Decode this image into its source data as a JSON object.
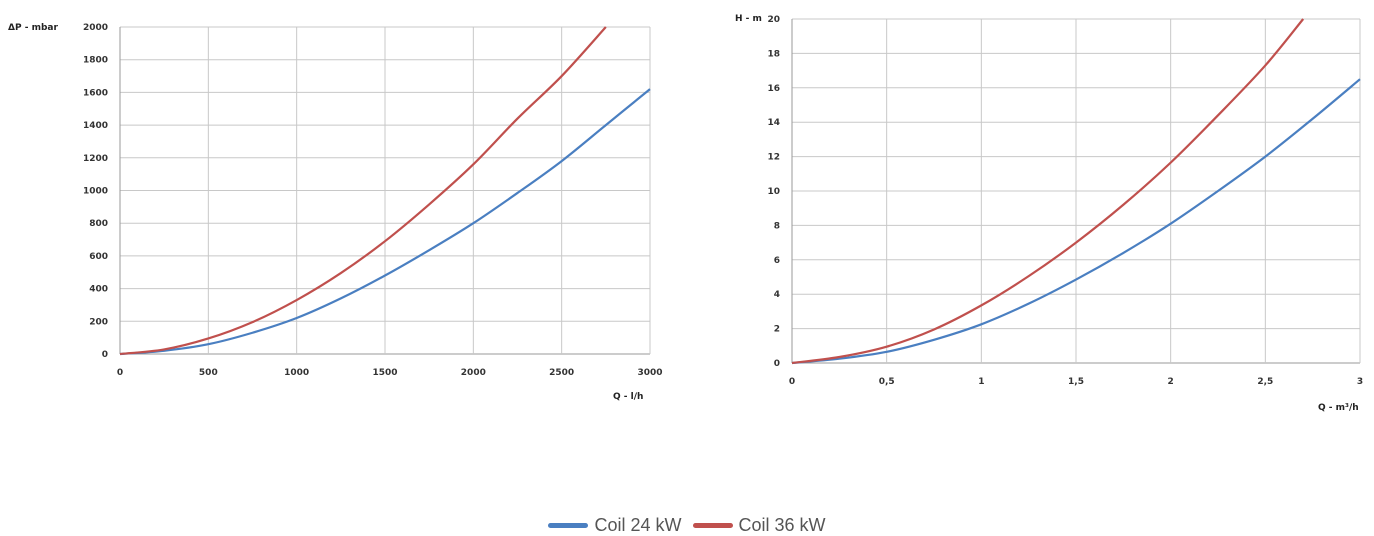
{
  "chart_data": [
    {
      "type": "line",
      "xlabel": "Q - l/h",
      "ylabel": "ΔP - mbar",
      "xlim": [
        0,
        3000
      ],
      "ylim": [
        0,
        2000
      ],
      "xticks": [
        0,
        500,
        1000,
        1500,
        2000,
        2500,
        3000
      ],
      "xtick_labels": [
        "0",
        "500",
        "1000",
        "1500",
        "2000",
        "2500",
        "3000"
      ],
      "yticks": [
        0,
        200,
        400,
        600,
        800,
        1000,
        1200,
        1400,
        1600,
        1800,
        2000
      ],
      "ytick_labels": [
        "0",
        "200",
        "400",
        "600",
        "800",
        "1000",
        "1200",
        "1400",
        "1600",
        "1800",
        "2000"
      ],
      "grid": true,
      "series": [
        {
          "name": "Coil 24 kW",
          "color": "#4a7fc1",
          "x": [
            0,
            250,
            500,
            750,
            1000,
            1250,
            1500,
            1750,
            2000,
            2250,
            2500,
            2750,
            3000
          ],
          "y": [
            0,
            20,
            60,
            130,
            220,
            340,
            480,
            635,
            800,
            985,
            1180,
            1400,
            1620
          ]
        },
        {
          "name": "Coil 36 kW",
          "color": "#c0504d",
          "x": [
            0,
            250,
            500,
            750,
            1000,
            1250,
            1500,
            1750,
            2000,
            2250,
            2500,
            2750
          ],
          "y": [
            0,
            28,
            95,
            195,
            330,
            495,
            690,
            915,
            1160,
            1440,
            1700,
            2000
          ]
        }
      ]
    },
    {
      "type": "line",
      "xlabel": "Q - m³/h",
      "ylabel": "H - m",
      "xlim": [
        0,
        3
      ],
      "ylim": [
        0,
        20
      ],
      "xticks": [
        0,
        0.5,
        1,
        1.5,
        2,
        2.5,
        3
      ],
      "xtick_labels": [
        "0",
        "0,5",
        "1",
        "1,5",
        "2",
        "2,5",
        "3"
      ],
      "yticks": [
        0,
        2,
        4,
        6,
        8,
        10,
        12,
        14,
        16,
        18,
        20
      ],
      "ytick_labels": [
        "0",
        "2",
        "4",
        "6",
        "8",
        "10",
        "12",
        "14",
        "16",
        "18",
        "20"
      ],
      "grid": true,
      "series": [
        {
          "name": "Coil 24 kW",
          "color": "#4a7fc1",
          "x": [
            0,
            0.25,
            0.5,
            0.75,
            1,
            1.25,
            1.5,
            1.75,
            2,
            2.25,
            2.5,
            2.75,
            3
          ],
          "y": [
            0,
            0.25,
            0.65,
            1.35,
            2.25,
            3.45,
            4.85,
            6.4,
            8.1,
            10.0,
            12.0,
            14.2,
            16.5
          ]
        },
        {
          "name": "Coil 36 kW",
          "color": "#c0504d",
          "x": [
            0,
            0.25,
            0.5,
            0.75,
            1,
            1.25,
            1.5,
            1.75,
            2,
            2.25,
            2.5,
            2.7
          ],
          "y": [
            0,
            0.35,
            0.95,
            1.95,
            3.35,
            5.05,
            7.0,
            9.2,
            11.65,
            14.4,
            17.3,
            20.0
          ]
        }
      ]
    }
  ],
  "legend": {
    "items": [
      {
        "label": "Coil 24 kW",
        "color": "#4a7fc1"
      },
      {
        "label": "Coil 36 kW",
        "color": "#c0504d"
      }
    ]
  }
}
